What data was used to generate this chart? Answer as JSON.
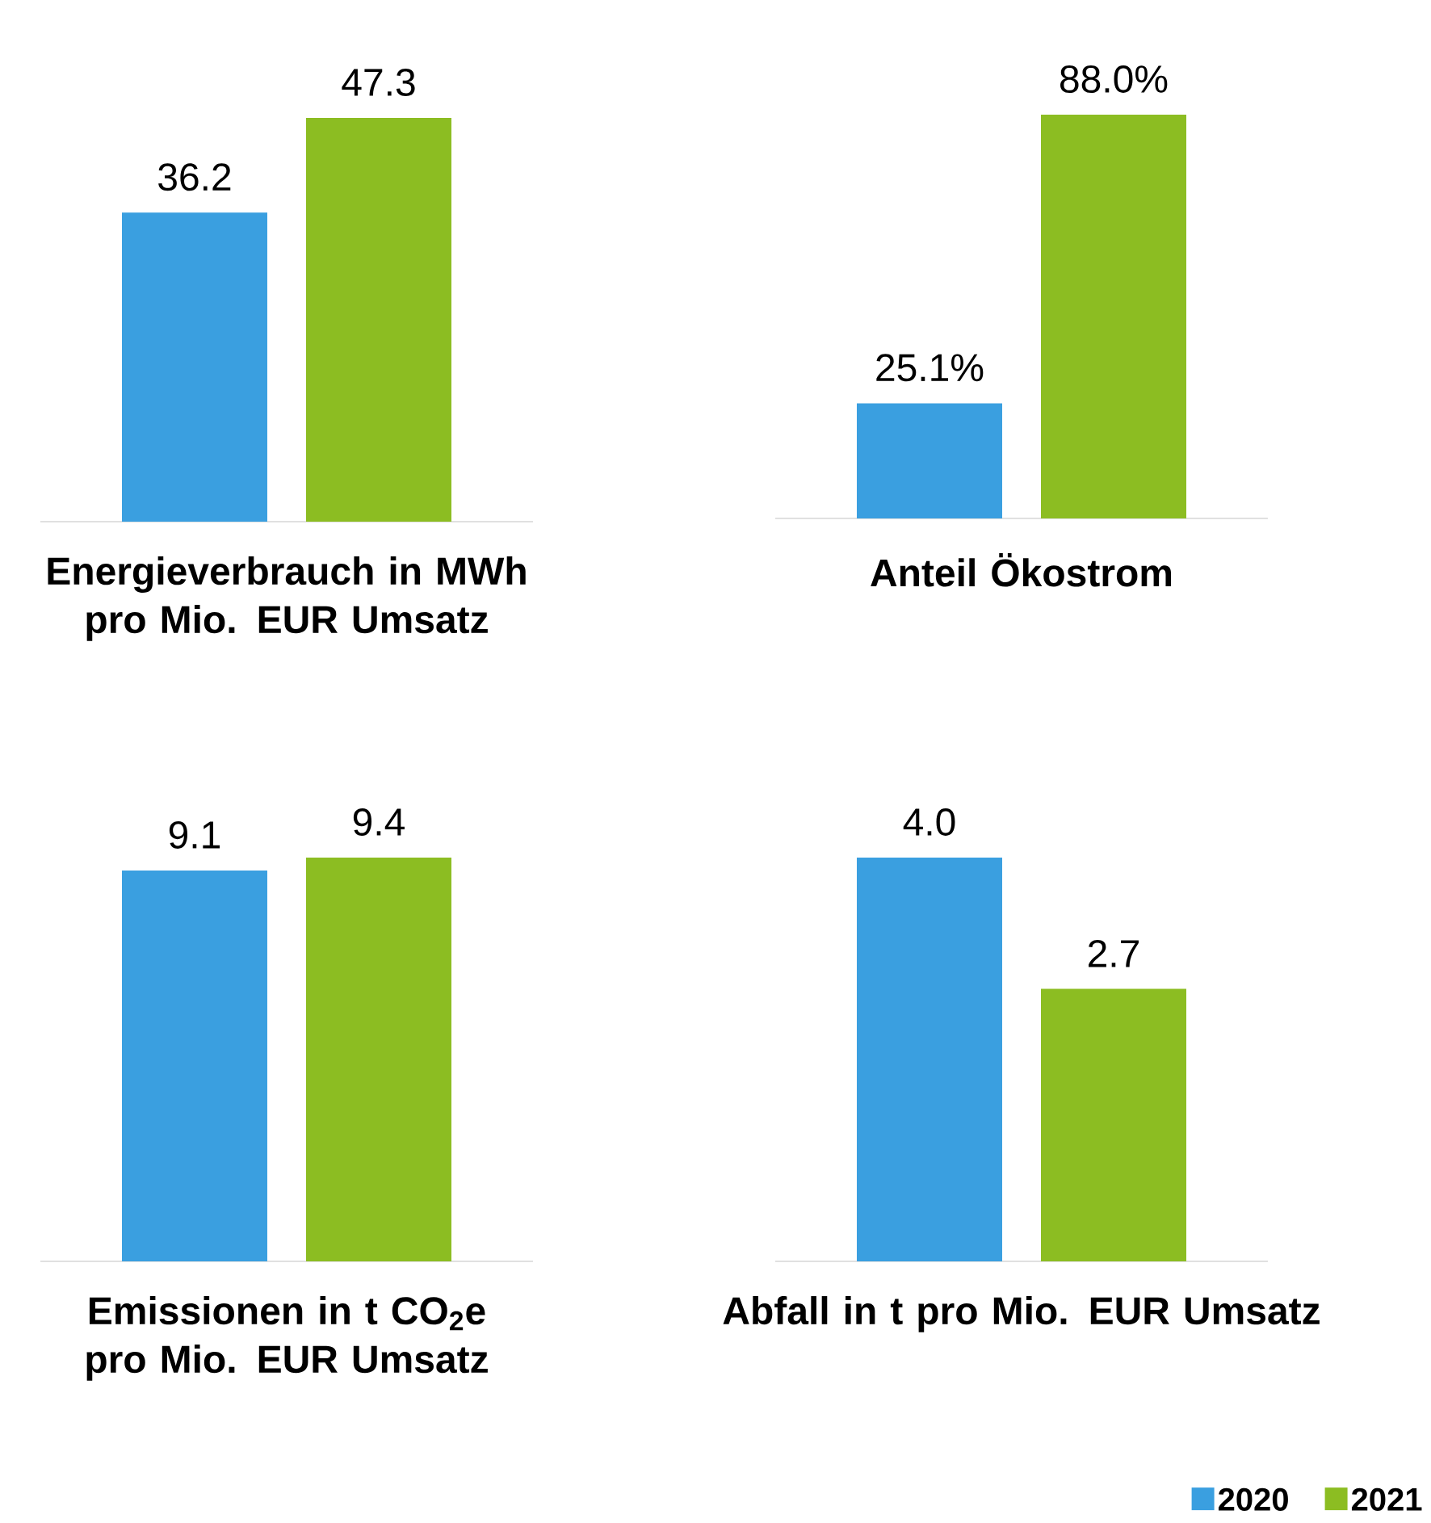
{
  "chart_data": [
    {
      "type": "bar",
      "xlabel": "Energieverbrauch in MWh pro Mio. EUR Umsatz",
      "categories": [
        null
      ],
      "series": [
        {
          "color": "#3a9fe0",
          "values": [
            36.2
          ],
          "value_labels": [
            "36.2"
          ]
        },
        {
          "color": "#8cbd22",
          "values": [
            47.3
          ],
          "value_labels": [
            "47.3"
          ]
        }
      ]
    },
    {
      "type": "bar",
      "xlabel": "Anteil Ökostrom",
      "categories": [
        null
      ],
      "series": [
        {
          "color": "#3a9fe0",
          "values": [
            25.1
          ],
          "value_labels": [
            "25.1%"
          ]
        },
        {
          "color": "#8cbd22",
          "values": [
            88.0
          ],
          "value_labels": [
            "88.0%"
          ]
        }
      ]
    },
    {
      "type": "bar",
      "xlabel": "Emissionen in t CO$_{2}$e pro Mio. EUR Umsatz",
      "categories": [
        null
      ],
      "series": [
        {
          "color": "#3a9fe0",
          "values": [
            9.1
          ],
          "value_labels": [
            "9.1"
          ]
        },
        {
          "color": "#8cbd22",
          "values": [
            9.4
          ],
          "value_labels": [
            "9.4"
          ]
        }
      ]
    },
    {
      "type": "bar",
      "xlabel": "Abfall in t pro Mio. EUR Umsatz",
      "categories": [
        null
      ],
      "series": [
        {
          "name": "2020",
          "color": "#3a9fe0",
          "values": [
            4.0
          ],
          "value_labels": [
            "4.0"
          ]
        },
        {
          "name": "2021",
          "color": "#8cbd22",
          "values": [
            2.7
          ],
          "value_labels": [
            "2.7"
          ]
        }
      ],
      "legend": "bottom right"
    }
  ]
}
